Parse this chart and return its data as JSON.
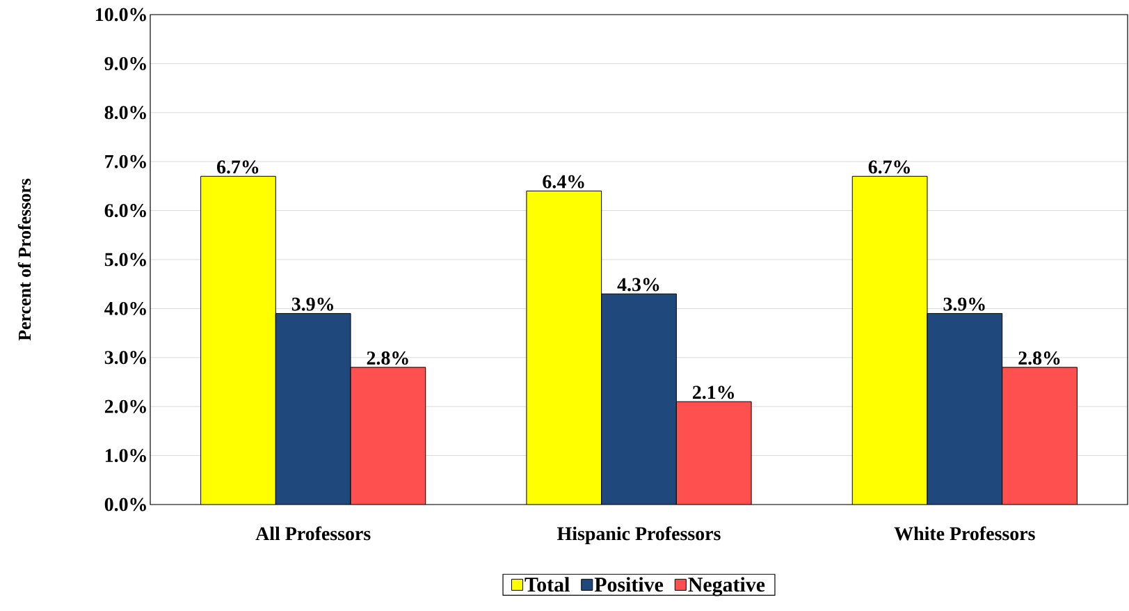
{
  "chart_data": {
    "type": "bar",
    "ylabel": "Percent of Professors",
    "categories": [
      "All Professors",
      "Hispanic Professors",
      "White Professors"
    ],
    "series": [
      {
        "name": "Total",
        "color": "#ffff00",
        "values": [
          6.7,
          6.4,
          6.7
        ],
        "value_labels": [
          "6.7%",
          "6.4%",
          "6.7%"
        ]
      },
      {
        "name": "Positive",
        "color": "#1f497d",
        "values": [
          3.9,
          4.3,
          3.9
        ],
        "value_labels": [
          "3.9%",
          "4.3%",
          "3.9%"
        ]
      },
      {
        "name": "Negative",
        "color": "#ff5050",
        "values": [
          2.8,
          2.1,
          2.8
        ],
        "value_labels": [
          "2.8%",
          "2.1%",
          "2.8%"
        ]
      }
    ],
    "ylim": [
      0,
      10
    ],
    "yticks": [
      {
        "value": 0,
        "label": "0.0%"
      },
      {
        "value": 1,
        "label": "1.0%"
      },
      {
        "value": 2,
        "label": "2.0%"
      },
      {
        "value": 3,
        "label": "3.0%"
      },
      {
        "value": 4,
        "label": "4.0%"
      },
      {
        "value": 5,
        "label": "5.0%"
      },
      {
        "value": 6,
        "label": "6.0%"
      },
      {
        "value": 7,
        "label": "7.0%"
      },
      {
        "value": 8,
        "label": "8.0%"
      },
      {
        "value": 9,
        "label": "9.0%"
      },
      {
        "value": 10,
        "label": "10.0%"
      }
    ],
    "grid": "y",
    "legend": "bottom"
  }
}
